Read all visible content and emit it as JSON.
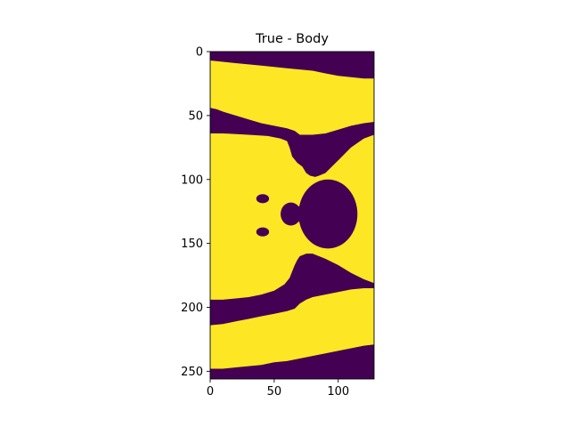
{
  "chart_data": {
    "type": "heatmap",
    "title": "True - Body",
    "xlabel": "",
    "ylabel": "",
    "image_shape": [
      256,
      128
    ],
    "xlim": [
      0,
      128
    ],
    "ylim": [
      256,
      0
    ],
    "x_ticks": [
      0,
      50,
      100
    ],
    "y_ticks": [
      0,
      50,
      100,
      150,
      200,
      250
    ],
    "colormap": "viridis-binary",
    "colors": {
      "background": "#440154",
      "body": "#fde725"
    },
    "grid": false,
    "regions": {
      "top_bg_lower_edge": [
        [
          0,
          7
        ],
        [
          10,
          8
        ],
        [
          20,
          9
        ],
        [
          30,
          10
        ],
        [
          40,
          11
        ],
        [
          50,
          12
        ],
        [
          60,
          13
        ],
        [
          70,
          14
        ],
        [
          80,
          15
        ],
        [
          90,
          17
        ],
        [
          100,
          19
        ],
        [
          110,
          20
        ],
        [
          120,
          21
        ],
        [
          128,
          21
        ]
      ],
      "band_top_edge": [
        [
          0,
          44
        ],
        [
          5,
          45
        ],
        [
          10,
          47
        ],
        [
          20,
          50
        ],
        [
          30,
          53
        ],
        [
          40,
          56
        ],
        [
          50,
          58
        ],
        [
          60,
          60
        ],
        [
          66,
          62
        ],
        [
          70,
          65
        ],
        [
          75,
          65
        ],
        [
          80,
          65
        ],
        [
          90,
          64
        ],
        [
          100,
          61
        ],
        [
          110,
          58
        ],
        [
          120,
          56
        ],
        [
          128,
          55
        ]
      ],
      "band_bottom_edge": [
        [
          0,
          64
        ],
        [
          10,
          64
        ],
        [
          30,
          65
        ],
        [
          45,
          66
        ],
        [
          55,
          68
        ],
        [
          60,
          70
        ],
        [
          62,
          75
        ],
        [
          64,
          82
        ],
        [
          68,
          87
        ],
        [
          72,
          90
        ],
        [
          75,
          95
        ],
        [
          78,
          97
        ],
        [
          82,
          98
        ],
        [
          85,
          97
        ],
        [
          90,
          95
        ],
        [
          95,
          90
        ],
        [
          100,
          85
        ],
        [
          110,
          75
        ],
        [
          120,
          68
        ],
        [
          128,
          65
        ]
      ],
      "blob_large": {
        "cx": 92,
        "cy": 127,
        "rx": 23,
        "ry": 27
      },
      "blob_middle": {
        "cx": 63,
        "cy": 127,
        "rx": 8,
        "ry": 9
      },
      "blob_small_top": {
        "cx": 41,
        "cy": 115,
        "rx": 5,
        "ry": 3.5
      },
      "blob_small_bottom": {
        "cx": 41,
        "cy": 141,
        "rx": 5,
        "ry": 3.5
      },
      "lower_band_top_edge": [
        [
          0,
          194
        ],
        [
          10,
          194
        ],
        [
          20,
          193
        ],
        [
          30,
          192
        ],
        [
          40,
          190
        ],
        [
          50,
          187
        ],
        [
          58,
          182
        ],
        [
          62,
          177
        ],
        [
          64,
          172
        ],
        [
          66,
          167
        ],
        [
          68,
          163
        ],
        [
          70,
          160
        ],
        [
          75,
          158
        ],
        [
          80,
          158
        ],
        [
          85,
          160
        ],
        [
          90,
          162
        ],
        [
          100,
          167
        ],
        [
          110,
          173
        ],
        [
          120,
          178
        ],
        [
          128,
          181
        ]
      ],
      "lower_band_bottom_edge": [
        [
          0,
          214
        ],
        [
          10,
          213
        ],
        [
          20,
          211
        ],
        [
          30,
          209
        ],
        [
          40,
          207
        ],
        [
          50,
          205
        ],
        [
          60,
          203
        ],
        [
          66,
          201
        ],
        [
          70,
          197
        ],
        [
          75,
          194
        ],
        [
          80,
          192
        ],
        [
          90,
          190
        ],
        [
          100,
          188
        ],
        [
          110,
          186
        ],
        [
          120,
          185
        ],
        [
          128,
          185
        ]
      ],
      "bottom_bg_upper_edge": [
        [
          0,
          248
        ],
        [
          10,
          248
        ],
        [
          20,
          247
        ],
        [
          30,
          246
        ],
        [
          40,
          245
        ],
        [
          50,
          243
        ],
        [
          60,
          242
        ],
        [
          70,
          240
        ],
        [
          80,
          238
        ],
        [
          90,
          236
        ],
        [
          100,
          234
        ],
        [
          110,
          232
        ],
        [
          120,
          230
        ],
        [
          128,
          229
        ]
      ]
    }
  }
}
